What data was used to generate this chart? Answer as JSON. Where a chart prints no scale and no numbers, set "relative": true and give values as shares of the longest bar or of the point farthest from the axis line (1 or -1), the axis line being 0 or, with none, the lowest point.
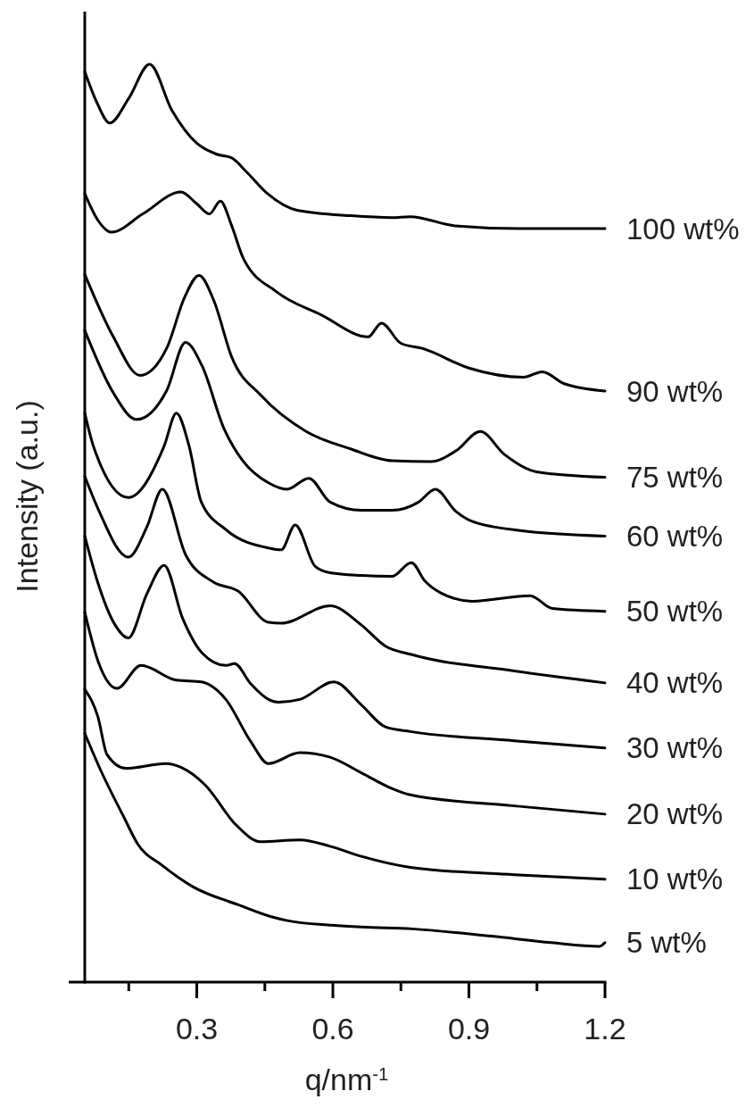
{
  "chart_data": {
    "type": "line",
    "relative": true,
    "xlabel": "q/nm$^{-1}$",
    "ylabel": "Intensity (a.u.)",
    "xlim": [
      0.053,
      1.2
    ],
    "xticks": [
      {
        "value": 0.15,
        "label": null
      },
      0.3,
      {
        "value": 0.45,
        "label": null
      },
      0.6,
      {
        "value": 0.75,
        "label": null
      },
      0.9,
      {
        "value": 1.05,
        "label": null
      },
      1.2
    ],
    "grid": false,
    "marker": "none",
    "line_style": "solid",
    "series": [
      {
        "name": "100 wt%",
        "color": "#000000",
        "x": [
          0.053,
          0.08,
          0.108,
          0.15,
          0.196,
          0.245,
          0.3,
          0.344,
          0.377,
          0.411,
          0.456,
          0.521,
          0.64,
          0.73,
          0.77,
          0.87,
          1.01,
          1.2
        ],
        "values": [
          0.992,
          0.958,
          0.936,
          0.963,
          1.0,
          0.95,
          0.914,
          0.902,
          0.898,
          0.882,
          0.859,
          0.841,
          0.835,
          0.833,
          0.834,
          0.824,
          0.821,
          0.821
        ]
      },
      {
        "name": "90 wt%",
        "color": "#000000",
        "x": [
          0.053,
          0.082,
          0.112,
          0.181,
          0.265,
          0.3,
          0.328,
          0.352,
          0.377,
          0.403,
          0.476,
          0.574,
          0.678,
          0.707,
          0.75,
          0.8,
          0.9,
          1.02,
          1.062,
          1.11,
          1.2
        ],
        "values": [
          0.859,
          0.83,
          0.817,
          0.837,
          0.861,
          0.848,
          0.837,
          0.851,
          0.824,
          0.788,
          0.752,
          0.727,
          0.703,
          0.718,
          0.696,
          0.69,
          0.669,
          0.659,
          0.665,
          0.652,
          0.644
        ]
      },
      {
        "name": "75 wt%",
        "color": "#000000",
        "x": [
          0.053,
          0.116,
          0.175,
          0.234,
          0.273,
          0.305,
          0.338,
          0.377,
          0.442,
          0.541,
          0.639,
          0.731,
          0.816,
          0.872,
          0.925,
          0.978,
          1.049,
          1.2
        ],
        "values": [
          0.771,
          0.703,
          0.661,
          0.691,
          0.746,
          0.77,
          0.742,
          0.681,
          0.639,
          0.6,
          0.581,
          0.568,
          0.567,
          0.579,
          0.6,
          0.575,
          0.556,
          0.55
        ]
      },
      {
        "name": "60 wt%",
        "color": "#000000",
        "x": [
          0.053,
          0.116,
          0.167,
          0.234,
          0.275,
          0.312,
          0.36,
          0.38,
          0.4,
          0.458,
          0.499,
          0.547,
          0.594,
          0.663,
          0.731,
          0.789,
          0.826,
          0.871,
          0.907,
          1.013,
          1.2
        ],
        "values": [
          0.71,
          0.642,
          0.613,
          0.645,
          0.697,
          0.671,
          0.603,
          0.584,
          0.569,
          0.544,
          0.537,
          0.549,
          0.523,
          0.514,
          0.514,
          0.523,
          0.537,
          0.513,
          0.502,
          0.492,
          0.486
        ]
      },
      {
        "name": "50 wt%",
        "color": "#000000",
        "x": [
          0.053,
          0.072,
          0.149,
          0.228,
          0.255,
          0.283,
          0.31,
          0.364,
          0.458,
          0.486,
          0.517,
          0.561,
          0.594,
          0.663,
          0.73,
          0.773,
          0.803,
          0.838,
          0.907,
          1.035,
          1.084,
          1.2
        ],
        "values": [
          0.62,
          0.584,
          0.528,
          0.584,
          0.62,
          0.584,
          0.523,
          0.493,
          0.473,
          0.471,
          0.498,
          0.453,
          0.446,
          0.443,
          0.442,
          0.457,
          0.437,
          0.424,
          0.415,
          0.421,
          0.407,
          0.404
        ]
      },
      {
        "name": "40 wt%",
        "color": "#000000",
        "x": [
          0.053,
          0.082,
          0.149,
          0.19,
          0.224,
          0.275,
          0.336,
          0.391,
          0.458,
          0.486,
          0.594,
          0.663,
          0.716,
          0.773,
          1.0,
          1.2
        ],
        "values": [
          0.551,
          0.516,
          0.463,
          0.496,
          0.537,
          0.466,
          0.436,
          0.426,
          0.392,
          0.391,
          0.41,
          0.389,
          0.366,
          0.357,
          0.339,
          0.326
        ]
      },
      {
        "name": "30 wt%",
        "color": "#000000",
        "x": [
          0.053,
          0.08,
          0.12,
          0.149,
          0.19,
          0.228,
          0.269,
          0.311,
          0.364,
          0.383,
          0.419,
          0.458,
          0.48,
          0.527,
          0.602,
          0.663,
          0.716,
          0.771,
          1.0,
          1.2
        ],
        "values": [
          0.486,
          0.438,
          0.389,
          0.375,
          0.423,
          0.454,
          0.396,
          0.359,
          0.345,
          0.347,
          0.325,
          0.308,
          0.305,
          0.308,
          0.327,
          0.302,
          0.278,
          0.273,
          0.263,
          0.255
        ]
      },
      {
        "name": "20 wt%",
        "color": "#000000",
        "x": [
          0.053,
          0.082,
          0.124,
          0.177,
          0.255,
          0.31,
          0.364,
          0.419,
          0.458,
          0.527,
          0.594,
          0.663,
          0.73,
          0.771,
          1.0,
          1.2
        ],
        "values": [
          0.403,
          0.35,
          0.32,
          0.345,
          0.329,
          0.327,
          0.308,
          0.262,
          0.238,
          0.25,
          0.245,
          0.228,
          0.211,
          0.204,
          0.192,
          0.183
        ]
      },
      {
        "name": "10 wt%",
        "color": "#000000",
        "x": [
          0.053,
          0.082,
          0.102,
          0.143,
          0.232,
          0.265,
          0.318,
          0.387,
          0.44,
          0.527,
          0.594,
          0.663,
          0.771,
          1.0,
          1.2
        ],
        "values": [
          0.319,
          0.289,
          0.248,
          0.233,
          0.238,
          0.234,
          0.215,
          0.171,
          0.153,
          0.155,
          0.148,
          0.137,
          0.125,
          0.117,
          0.112
        ]
      },
      {
        "name": "5 wt%",
        "color": "#000000",
        "x": [
          0.053,
          0.087,
          0.141,
          0.169,
          0.224,
          0.291,
          0.393,
          0.466,
          0.5,
          0.598,
          0.663,
          0.775,
          0.95,
          1.082,
          1.188,
          1.2
        ],
        "values": [
          0.271,
          0.232,
          0.178,
          0.151,
          0.127,
          0.104,
          0.084,
          0.071,
          0.067,
          0.062,
          0.06,
          0.058,
          0.05,
          0.043,
          0.039,
          0.043
        ]
      }
    ]
  }
}
